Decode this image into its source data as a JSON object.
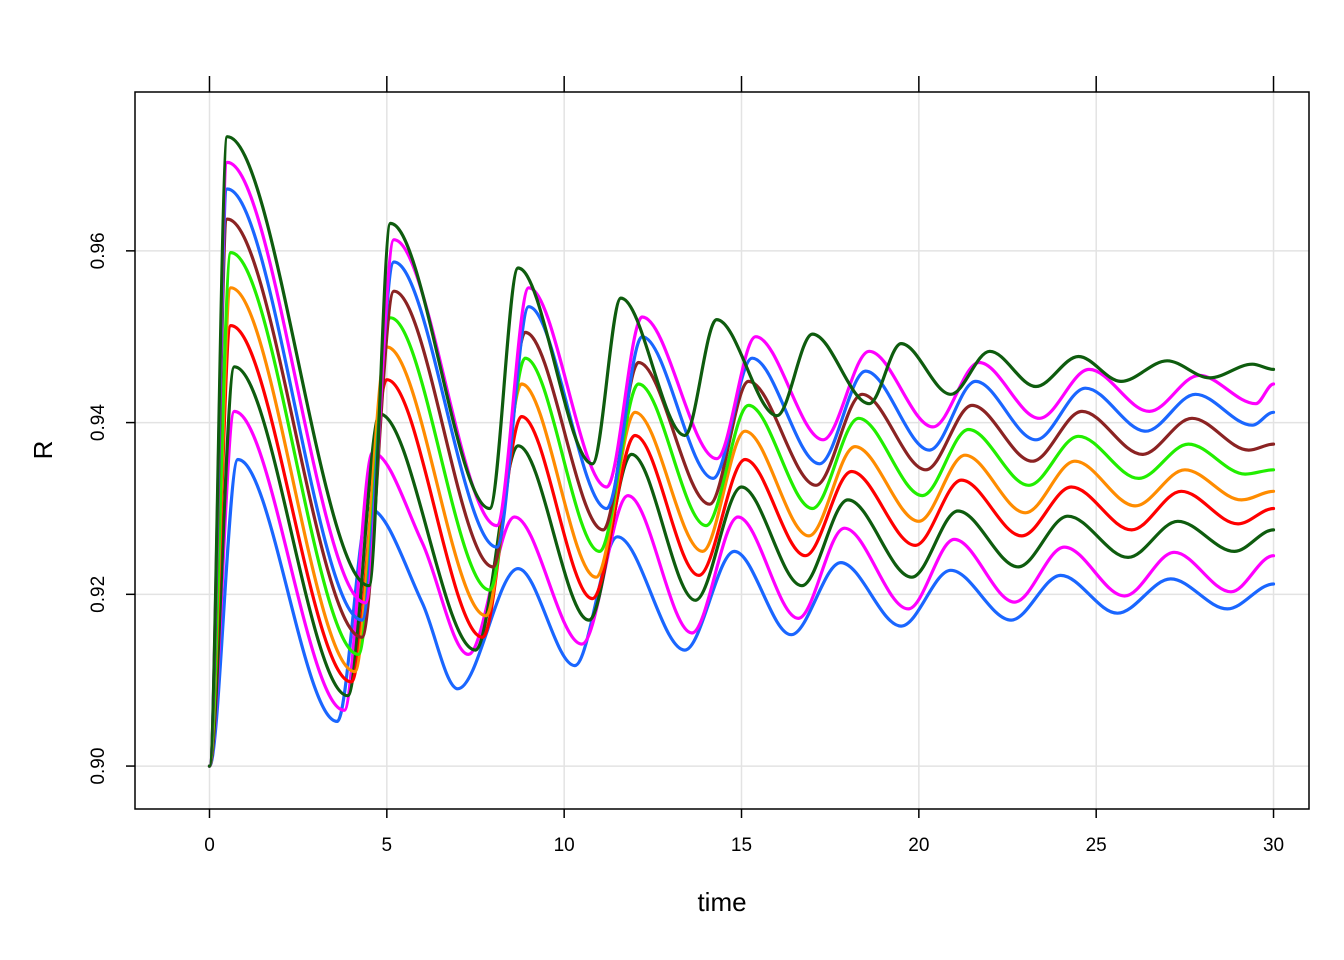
{
  "chart_data": {
    "type": "line",
    "title": "",
    "xlabel": "time",
    "ylabel": "R",
    "xlim": [
      -2.1,
      31.0
    ],
    "ylim": [
      0.895,
      0.9785
    ],
    "xticks": [
      "0",
      "5",
      "10",
      "15",
      "20",
      "25",
      "30"
    ],
    "yticks": [
      "0.90",
      "0.92",
      "0.94",
      "0.96"
    ],
    "grid": true,
    "legend": "none",
    "series": [
      {
        "color": "#1a66ff",
        "x": [
          0,
          0.8,
          3.6,
          4.5,
          6.0,
          7.0,
          8.7,
          10.3,
          11.5,
          13.4,
          14.8,
          16.4,
          17.8,
          19.5,
          20.9,
          22.6,
          24.0,
          25.6,
          27.1,
          28.7,
          30.0
        ],
        "values": [
          0.9,
          0.9357,
          0.9052,
          0.93,
          0.919,
          0.909,
          0.923,
          0.9117,
          0.9267,
          0.9135,
          0.925,
          0.9153,
          0.9237,
          0.9163,
          0.9228,
          0.917,
          0.9222,
          0.9178,
          0.9218,
          0.9183,
          0.9212
        ]
      },
      {
        "color": "#ff00ff",
        "x": [
          0,
          0.7,
          3.8,
          4.6,
          6.0,
          7.3,
          8.6,
          10.5,
          11.8,
          13.6,
          14.9,
          16.6,
          17.9,
          19.7,
          21.0,
          22.7,
          24.1,
          25.8,
          27.2,
          28.8,
          30.0
        ],
        "values": [
          0.9,
          0.9413,
          0.9065,
          0.9365,
          0.926,
          0.913,
          0.929,
          0.9142,
          0.9315,
          0.9155,
          0.929,
          0.9172,
          0.9277,
          0.9183,
          0.9264,
          0.9191,
          0.9255,
          0.9198,
          0.9249,
          0.9203,
          0.9245
        ]
      },
      {
        "color": "#0e5c0e",
        "x": [
          0,
          0.7,
          3.9,
          4.8,
          7.5,
          8.7,
          10.7,
          11.9,
          13.7,
          15.0,
          16.7,
          18.0,
          19.8,
          21.1,
          22.8,
          24.2,
          25.9,
          27.3,
          28.9,
          30.0
        ],
        "values": [
          0.9,
          0.9465,
          0.9082,
          0.941,
          0.9135,
          0.9373,
          0.917,
          0.9363,
          0.9193,
          0.9325,
          0.921,
          0.931,
          0.922,
          0.9297,
          0.9232,
          0.9291,
          0.9243,
          0.9285,
          0.925,
          0.9275
        ]
      },
      {
        "color": "#ff0000",
        "x": [
          0,
          0.6,
          4.0,
          5.0,
          7.7,
          8.8,
          10.8,
          12.0,
          13.8,
          15.1,
          16.8,
          18.1,
          19.9,
          21.2,
          22.9,
          24.3,
          26.0,
          27.4,
          29.0,
          30.0
        ],
        "values": [
          0.9,
          0.9513,
          0.9098,
          0.945,
          0.915,
          0.9407,
          0.9195,
          0.9385,
          0.9222,
          0.9357,
          0.9245,
          0.9343,
          0.9257,
          0.9333,
          0.9268,
          0.9325,
          0.9275,
          0.932,
          0.9282,
          0.93
        ]
      },
      {
        "color": "#ff8c00",
        "x": [
          0,
          0.6,
          4.1,
          5.0,
          7.8,
          8.8,
          10.9,
          12.0,
          13.9,
          15.1,
          16.9,
          18.2,
          20.0,
          21.3,
          23.0,
          24.4,
          26.1,
          27.5,
          29.1,
          30.0
        ],
        "values": [
          0.9,
          0.9557,
          0.911,
          0.9488,
          0.9175,
          0.9445,
          0.922,
          0.9412,
          0.925,
          0.939,
          0.9268,
          0.9372,
          0.9285,
          0.9362,
          0.9295,
          0.9355,
          0.9303,
          0.9345,
          0.931,
          0.932
        ]
      },
      {
        "color": "#22ee00",
        "x": [
          0,
          0.6,
          4.2,
          5.1,
          7.9,
          8.9,
          11.0,
          12.1,
          14.0,
          15.2,
          17.0,
          18.3,
          20.1,
          21.4,
          23.1,
          24.5,
          26.2,
          27.6,
          29.2,
          30.0
        ],
        "values": [
          0.9,
          0.9598,
          0.913,
          0.9522,
          0.9205,
          0.9475,
          0.925,
          0.9445,
          0.928,
          0.942,
          0.93,
          0.9405,
          0.9315,
          0.9392,
          0.9327,
          0.9384,
          0.9335,
          0.9375,
          0.934,
          0.9345
        ]
      },
      {
        "color": "#8b2323",
        "x": [
          0,
          0.5,
          4.3,
          5.2,
          8.0,
          8.9,
          11.1,
          12.1,
          14.1,
          15.2,
          17.1,
          18.4,
          20.2,
          21.5,
          23.2,
          24.6,
          26.3,
          27.7,
          29.3,
          30.0
        ],
        "values": [
          0.9,
          0.9637,
          0.915,
          0.9553,
          0.9232,
          0.9505,
          0.9275,
          0.947,
          0.9305,
          0.9448,
          0.9327,
          0.9433,
          0.9345,
          0.942,
          0.9355,
          0.9413,
          0.9363,
          0.9405,
          0.9368,
          0.9375
        ]
      },
      {
        "color": "#1a66ff",
        "x": [
          0,
          0.5,
          4.3,
          5.2,
          8.1,
          9.0,
          11.2,
          12.2,
          14.2,
          15.3,
          17.2,
          18.5,
          20.3,
          21.6,
          23.3,
          24.7,
          26.4,
          27.8,
          29.4,
          30.0
        ],
        "values": [
          0.9,
          0.9672,
          0.917,
          0.9587,
          0.9255,
          0.9535,
          0.93,
          0.95,
          0.9335,
          0.9475,
          0.9352,
          0.946,
          0.9368,
          0.9448,
          0.938,
          0.944,
          0.939,
          0.9433,
          0.9397,
          0.9412
        ]
      },
      {
        "color": "#ff00ff",
        "x": [
          0,
          0.5,
          4.4,
          5.2,
          8.1,
          9.0,
          11.2,
          12.2,
          14.3,
          15.4,
          17.3,
          18.6,
          20.4,
          21.7,
          23.4,
          24.8,
          26.5,
          27.9,
          29.5,
          30.0
        ],
        "values": [
          0.9,
          0.9703,
          0.919,
          0.9613,
          0.928,
          0.9557,
          0.9325,
          0.9523,
          0.9358,
          0.95,
          0.938,
          0.9483,
          0.9395,
          0.947,
          0.9405,
          0.9462,
          0.9413,
          0.9455,
          0.9422,
          0.9445
        ]
      },
      {
        "color": "#0e5c0e",
        "x": [
          0,
          0.5,
          4.5,
          5.1,
          7.9,
          8.7,
          10.8,
          11.6,
          13.4,
          14.3,
          16.0,
          17.0,
          18.6,
          19.5,
          20.9,
          22.0,
          23.3,
          24.5,
          25.7,
          27.0,
          28.2,
          29.4,
          30.0
        ],
        "values": [
          0.9,
          0.9733,
          0.921,
          0.9632,
          0.93,
          0.958,
          0.9352,
          0.9545,
          0.9385,
          0.952,
          0.9408,
          0.9503,
          0.9422,
          0.9492,
          0.9433,
          0.9483,
          0.9442,
          0.9477,
          0.9448,
          0.9472,
          0.9452,
          0.9468,
          0.9462
        ]
      }
    ]
  }
}
